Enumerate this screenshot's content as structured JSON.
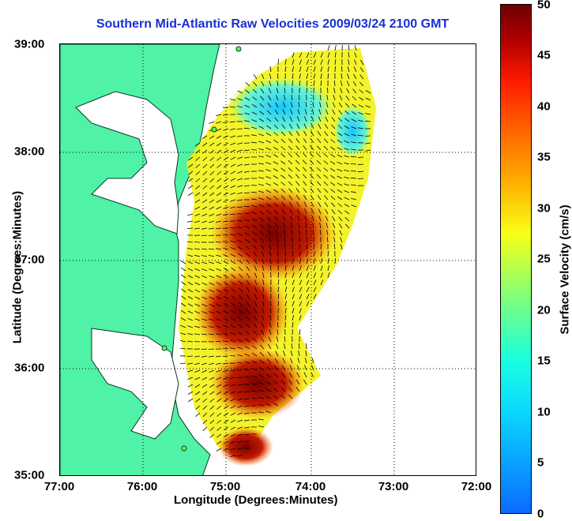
{
  "title": "Southern Mid-Atlantic Raw Velocities 2009/03/24 2100 GMT",
  "x_axis_label": "Longitude (Degrees:Minutes)",
  "y_axis_label": "Latitude (Degrees:Minutes)",
  "x_ticks": [
    "77:00",
    "76:00",
    "75:00",
    "74:00",
    "73:00",
    "72:00"
  ],
  "y_ticks": [
    "39:00",
    "38:00",
    "37:00",
    "36:00",
    "35:00"
  ],
  "colorbar": {
    "label": "Surface Velocity (cm/s)",
    "ticks": [
      "50",
      "45",
      "40",
      "35",
      "30",
      "25",
      "20",
      "15",
      "10",
      "5",
      "0"
    ],
    "range": [
      0,
      50
    ],
    "colors": [
      "#0a6bff",
      "#0bd8ff",
      "#18ffe0",
      "#7dff7d",
      "#f8ff16",
      "#ffb000",
      "#ff5000",
      "#ff1a00",
      "#b00000",
      "#6e0000"
    ]
  },
  "colors": {
    "land": "#4ff2a6",
    "water": "#ffffff",
    "title": "#1a2fd6",
    "arrow": "#000000"
  }
}
